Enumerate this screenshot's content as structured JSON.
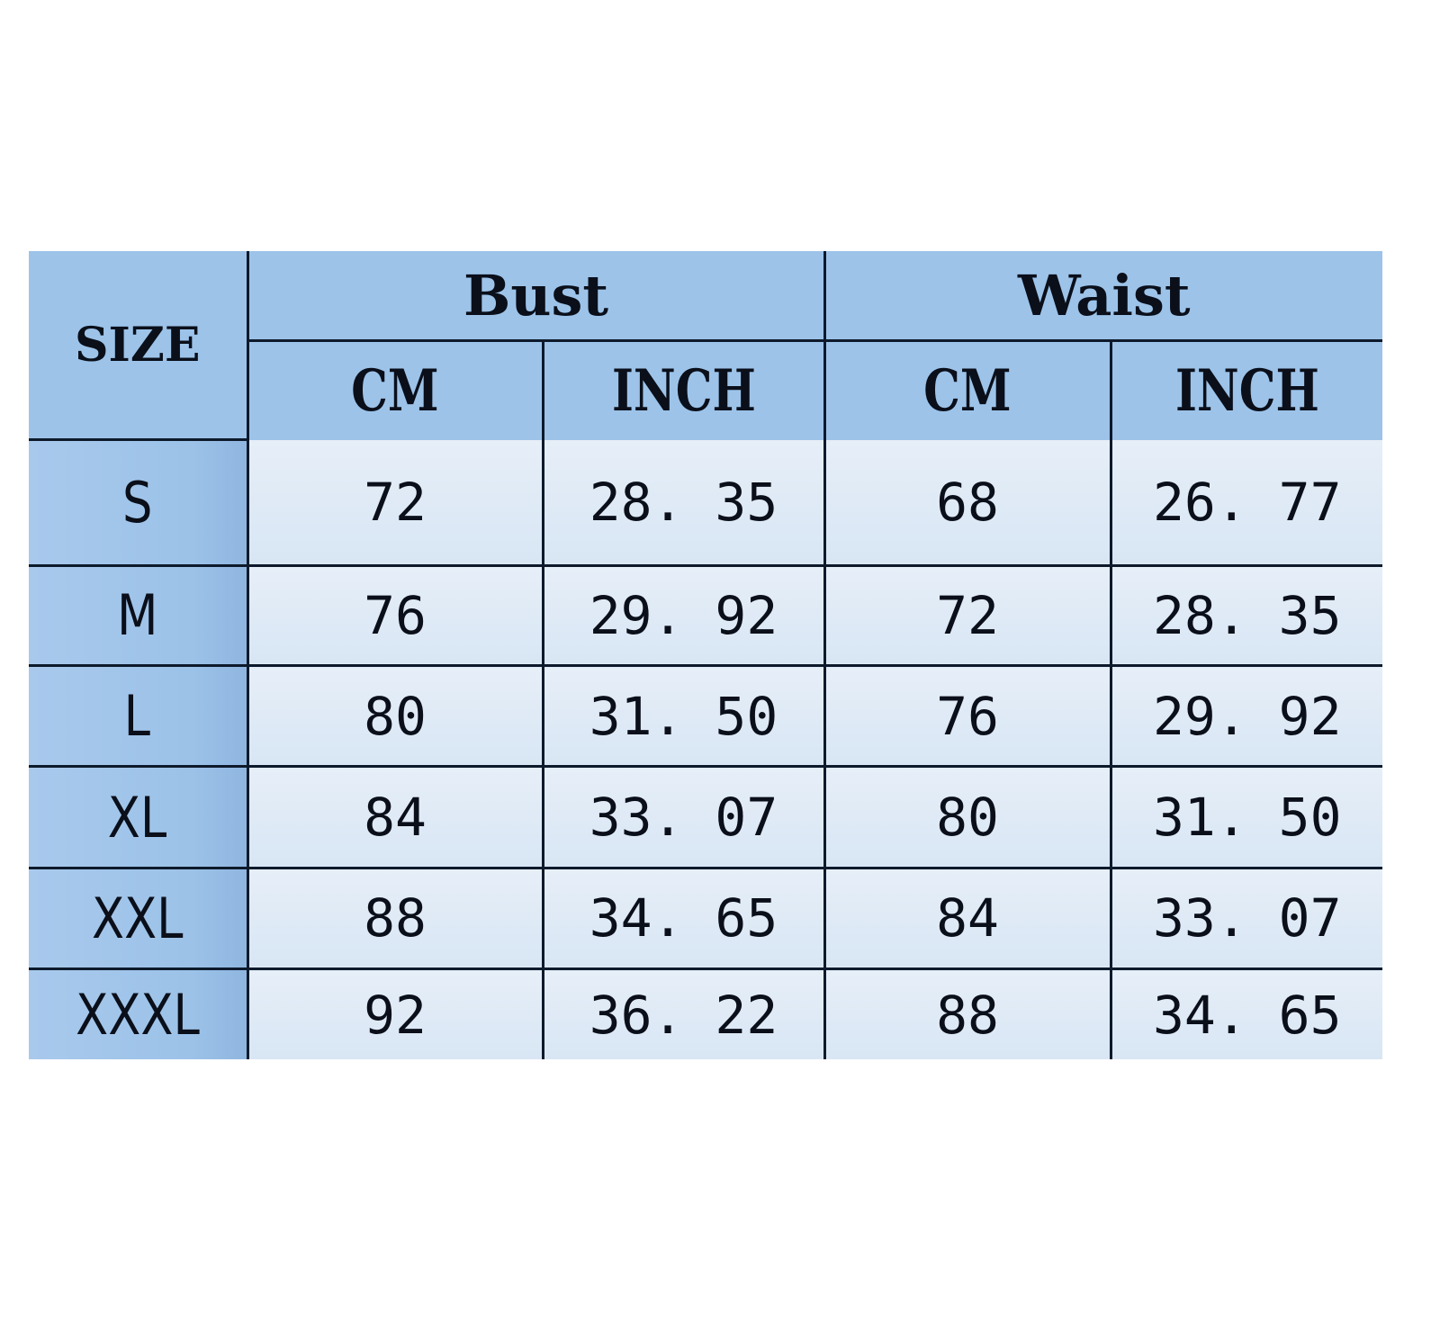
{
  "table": {
    "size_header": "SIZE",
    "groups": [
      "Bust",
      "Waist"
    ],
    "units": [
      "CM",
      "INCH",
      "CM",
      "INCH"
    ],
    "rows": [
      {
        "size": "S",
        "bust_cm": "72",
        "bust_inch": "28. 35",
        "waist_cm": "68",
        "waist_inch": "26. 77"
      },
      {
        "size": "M",
        "bust_cm": "76",
        "bust_inch": "29. 92",
        "waist_cm": "72",
        "waist_inch": "28. 35"
      },
      {
        "size": "L",
        "bust_cm": "80",
        "bust_inch": "31. 50",
        "waist_cm": "76",
        "waist_inch": "29. 92"
      },
      {
        "size": "XL",
        "bust_cm": "84",
        "bust_inch": "33. 07",
        "waist_cm": "80",
        "waist_inch": "31. 50"
      },
      {
        "size": "XXL",
        "bust_cm": "88",
        "bust_inch": "34. 65",
        "waist_cm": "84",
        "waist_inch": "33. 07"
      },
      {
        "size": "XXXL",
        "bust_cm": "92",
        "bust_inch": "36. 22",
        "waist_cm": "88",
        "waist_inch": "34. 65"
      }
    ],
    "colors": {
      "header": "#9dc3e9",
      "cell": "#dde9f5",
      "border": "#0d1a2b"
    }
  }
}
